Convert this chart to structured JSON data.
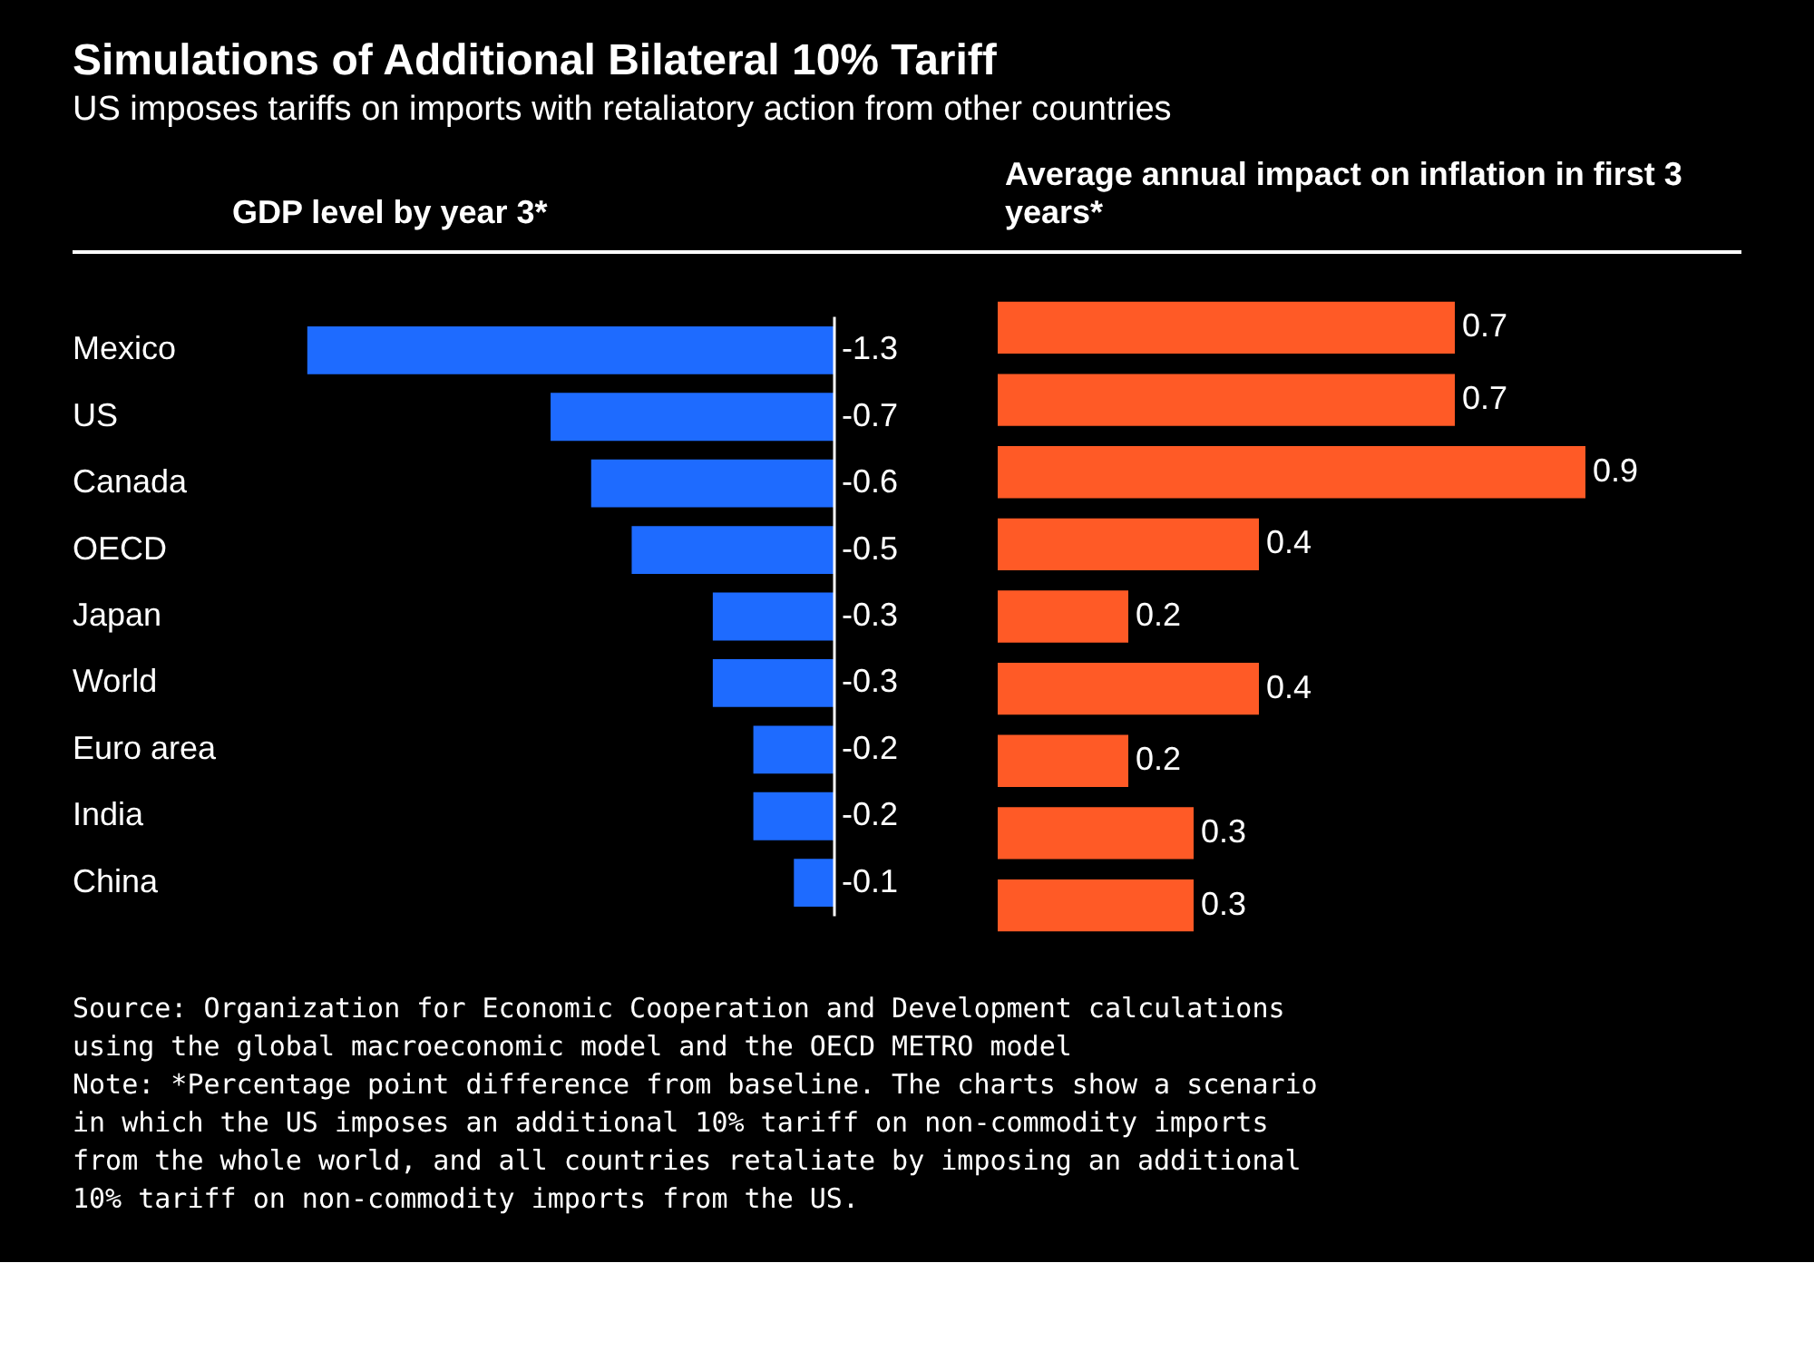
{
  "chart_data": [
    {
      "type": "bar",
      "orientation": "horizontal",
      "title": "Simulations of Additional Bilateral 10% Tariff",
      "subtitle": "US imposes tariffs on imports with retaliatory action from other countries",
      "xlabel": "GDP level by year 3*",
      "categories": [
        "Mexico",
        "US",
        "Canada",
        "OECD",
        "Japan",
        "World",
        "Euro area",
        "India",
        "China"
      ],
      "values": [
        -1.3,
        -0.7,
        -0.6,
        -0.5,
        -0.3,
        -0.3,
        -0.2,
        -0.2,
        -0.1
      ],
      "color": "#1e6bff",
      "data_labels": true
    },
    {
      "type": "bar",
      "orientation": "horizontal",
      "xlabel": "Average annual impact on inflation in first 3 years*",
      "categories": [
        null,
        null,
        null,
        null,
        null,
        null,
        null,
        null,
        null
      ],
      "values": [
        0.7,
        0.7,
        0.9,
        0.4,
        0.2,
        0.4,
        0.2,
        0.3,
        0.3
      ],
      "color": "#ff5a26",
      "data_labels": true,
      "annotations": [
        "Source: Organization for Economic Cooperation and Development calculations using the global macroeconomic model and the OECD METRO model",
        "Note: *Percentage point difference from baseline. The charts show a scenario in which the US imposes an additional 10% tariff on non-commodity imports from the whole world, and all countries retaliate by imposing an additional 10% tariff on non-commodity imports from the US."
      ]
    }
  ]
}
